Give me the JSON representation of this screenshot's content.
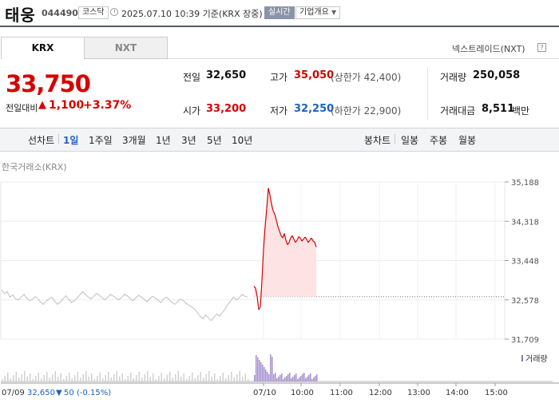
{
  "header": {
    "name": "태웅",
    "code": "044490",
    "market": "코스닥",
    "datetime": "2025.07.10 10:39 기준(KRX 장중)",
    "live_label": "실시간",
    "info_label": "기업개요"
  },
  "tabs": {
    "krx": "KRX",
    "nxt": "NXT",
    "nextrade": "넥스트레이드(NXT)",
    "nextrade_help": "?"
  },
  "price": {
    "current": "33,750",
    "change_label": "전일대비",
    "change_arrow": "▲",
    "change": "1,100",
    "change_pct": "+3.37%"
  },
  "stats": {
    "prev_label": "전일",
    "prev": "32,650",
    "high_label": "고가",
    "high": "35,050",
    "upper_label": "(상한가 42,400)",
    "volume_label": "거래량",
    "volume": "250,058",
    "open_label": "시가",
    "open": "33,200",
    "low_label": "저가",
    "low": "32,250",
    "lower_label": "(하한가 22,900)",
    "amount_label": "거래대금",
    "amount": "8,511",
    "amount_unit": "백만"
  },
  "periods": {
    "line_label": "선차트",
    "line_items": [
      "1일",
      "1주일",
      "3개월",
      "1년",
      "3년",
      "5년",
      "10년"
    ],
    "candle_label": "봉차트",
    "candle_items": [
      "일봉",
      "주봉",
      "월봉"
    ]
  },
  "chart_source": "한국거래소(KRX)",
  "chart_data": {
    "type": "line",
    "y_ticks": [
      "35,188",
      "34,318",
      "33,448",
      "32,578",
      "31,709"
    ],
    "y_range": [
      31709,
      35188
    ],
    "x_ticks": [
      "07/10",
      "10:00",
      "11:00",
      "12:00",
      "13:00",
      "14:00",
      "15:00"
    ],
    "volume_legend": "거래량",
    "prev_close": 32650,
    "prev_day": {
      "name": "07/09",
      "values": [
        32800,
        32720,
        32760,
        32640,
        32690,
        32600,
        32580,
        32640,
        32700,
        32620,
        32560,
        32590,
        32650,
        32610,
        32520,
        32480,
        32560,
        32600,
        32640,
        32550,
        32480,
        32530,
        32600,
        32670,
        32590,
        32520,
        32560,
        32620,
        32690,
        32760,
        32700,
        32640,
        32600,
        32660,
        32720,
        32680,
        32620,
        32580,
        32640,
        32700,
        32660,
        32610,
        32580,
        32640,
        32700,
        32670,
        32610,
        32560,
        32620,
        32680,
        32640,
        32590,
        32540,
        32600,
        32660,
        32620,
        32570,
        32520,
        32600,
        32640,
        32580,
        32520,
        32480,
        32540,
        32600,
        32560,
        32500,
        32460,
        32420,
        32380,
        32300,
        32220,
        32160,
        32240,
        32180,
        32120,
        32200,
        32260,
        32220,
        32300,
        32380,
        32480,
        32560,
        32640,
        32580,
        32620,
        32700,
        32660,
        32640
      ]
    },
    "today": {
      "values": [
        32880,
        32840,
        32660,
        32360,
        32420,
        33000,
        33700,
        34200,
        34600,
        35050,
        34900,
        34700,
        34550,
        34480,
        34350,
        34200,
        34100,
        34000,
        33950,
        34050,
        33900,
        33800,
        33850,
        33950,
        34000,
        33920,
        33850,
        33900,
        33980,
        33950,
        33880,
        33920,
        33970,
        33920,
        33850,
        33900,
        33950,
        33880,
        33860,
        33750
      ],
      "colors": [
        "#d60000",
        "#1a62c6"
      ]
    },
    "summary": {
      "date": "07/09",
      "close": "32,650",
      "arrow": "▼",
      "change": "50",
      "pct": "(-0.15%)"
    }
  }
}
